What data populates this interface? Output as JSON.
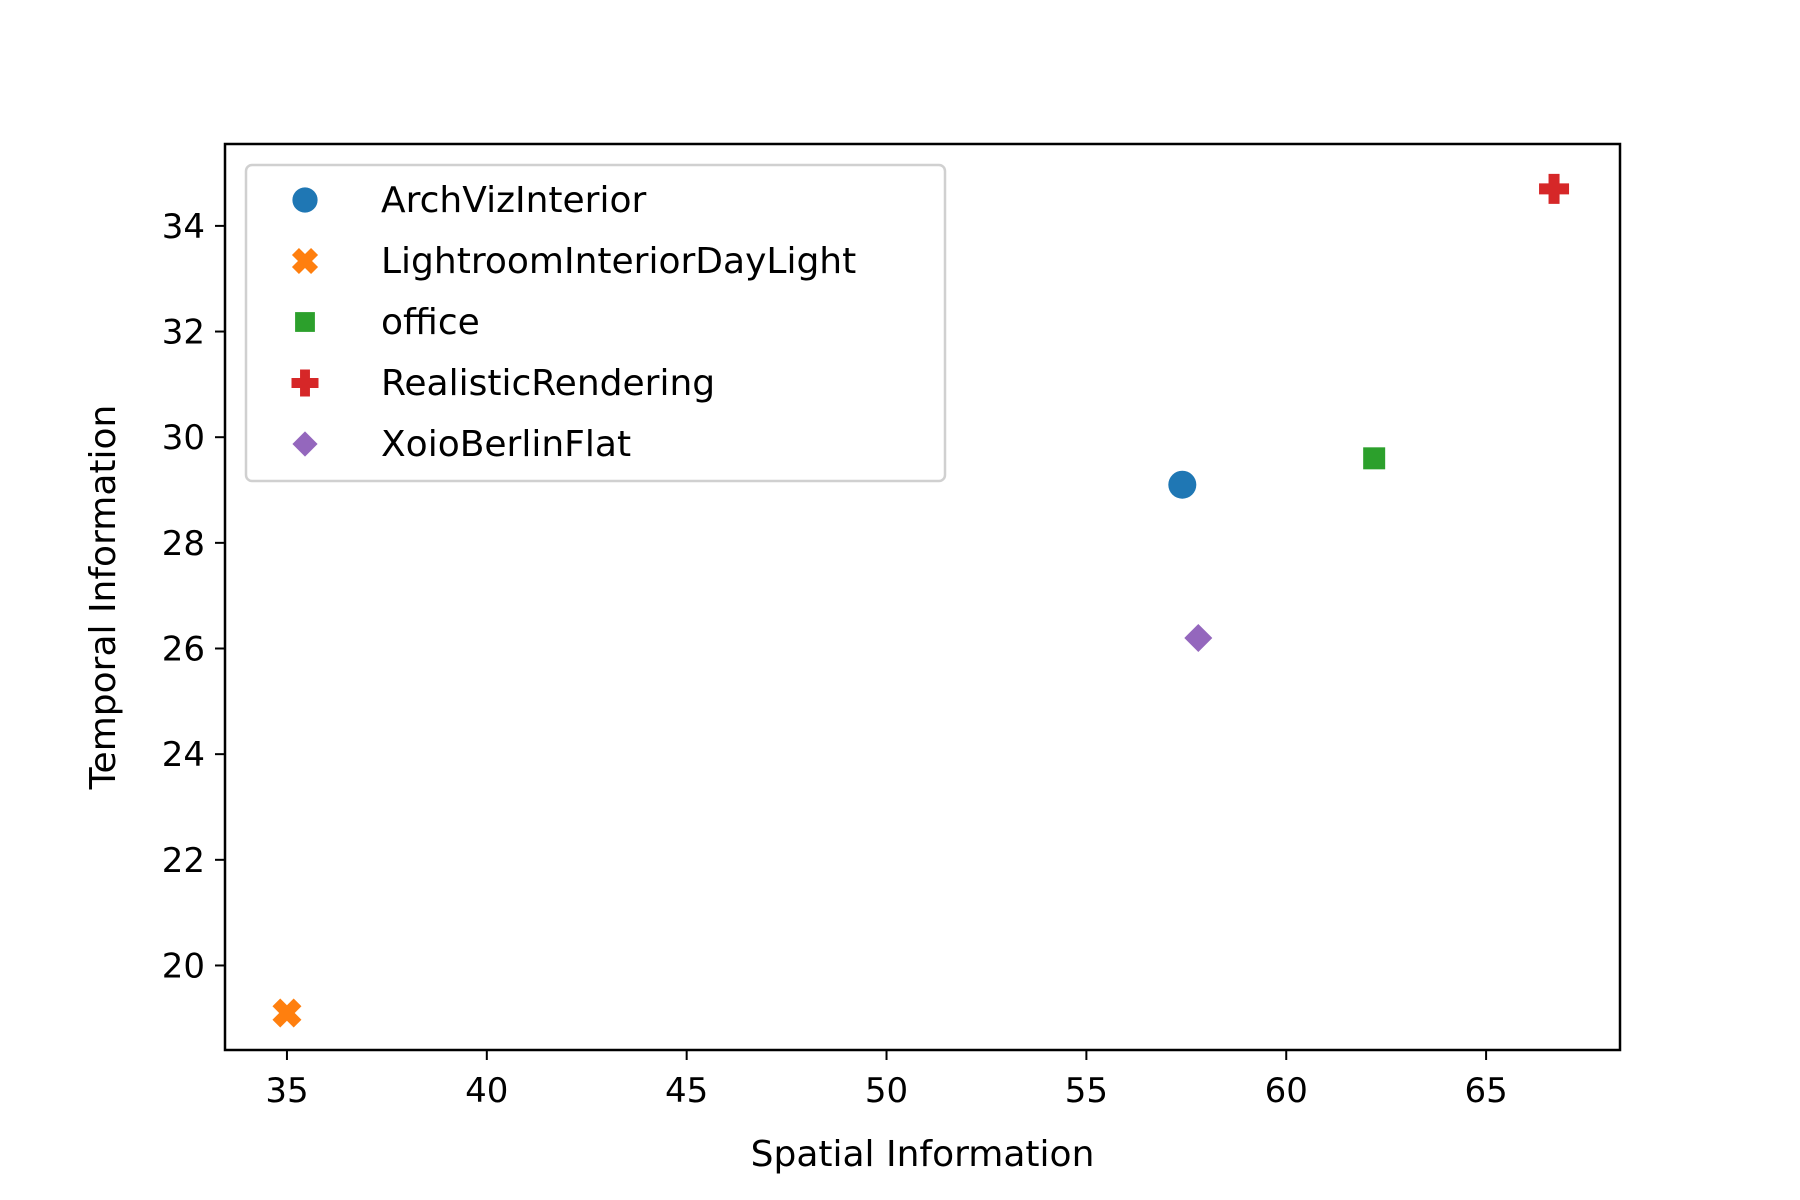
{
  "chart_data": {
    "type": "scatter",
    "title": "",
    "xlabel": "Spatial Information",
    "ylabel": "Temporal Information",
    "xlim": [
      33.45,
      68.35
    ],
    "ylim": [
      18.4,
      35.55
    ],
    "xticks": [
      35,
      40,
      45,
      50,
      55,
      60,
      65
    ],
    "yticks": [
      20,
      22,
      24,
      26,
      28,
      30,
      32,
      34
    ],
    "grid": false,
    "legend_position": "upper-left",
    "series": [
      {
        "name": "ArchVizInterior",
        "marker": "circle",
        "color": "#1f77b4",
        "points": [
          {
            "x": 57.4,
            "y": 29.1
          }
        ]
      },
      {
        "name": "LightroomInteriorDayLight",
        "marker": "x",
        "color": "#ff7f0e",
        "points": [
          {
            "x": 35.0,
            "y": 19.1
          }
        ]
      },
      {
        "name": "office",
        "marker": "square",
        "color": "#2ca02c",
        "points": [
          {
            "x": 62.2,
            "y": 29.6
          }
        ]
      },
      {
        "name": "RealisticRendering",
        "marker": "plus",
        "color": "#d62728",
        "points": [
          {
            "x": 66.7,
            "y": 34.7
          }
        ]
      },
      {
        "name": "XoioBerlinFlat",
        "marker": "diamond",
        "color": "#9467bd",
        "points": [
          {
            "x": 57.8,
            "y": 26.2
          }
        ]
      }
    ]
  }
}
